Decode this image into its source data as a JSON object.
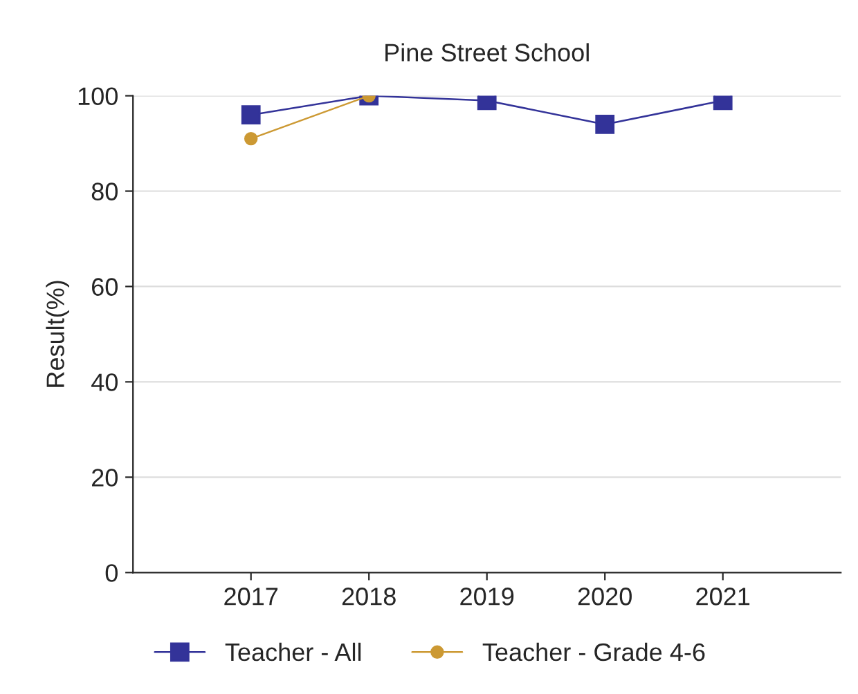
{
  "chart_data": {
    "type": "line",
    "title": "Pine Street School",
    "ylabel": "Result(%)",
    "categories": [
      "2017",
      "2018",
      "2019",
      "2020",
      "2021"
    ],
    "series": [
      {
        "name": "Teacher - All",
        "color": "#333399",
        "marker": "square",
        "values": [
          96,
          100,
          99,
          94,
          99
        ]
      },
      {
        "name": "Teacher - Grade 4-6",
        "color": "#cc9933",
        "marker": "circle",
        "values": [
          91,
          100,
          null,
          null,
          null
        ]
      }
    ],
    "ylim": [
      0,
      100
    ],
    "yticks": [
      0,
      20,
      40,
      60,
      80,
      100
    ],
    "grid": "y",
    "legend": "bottom"
  }
}
